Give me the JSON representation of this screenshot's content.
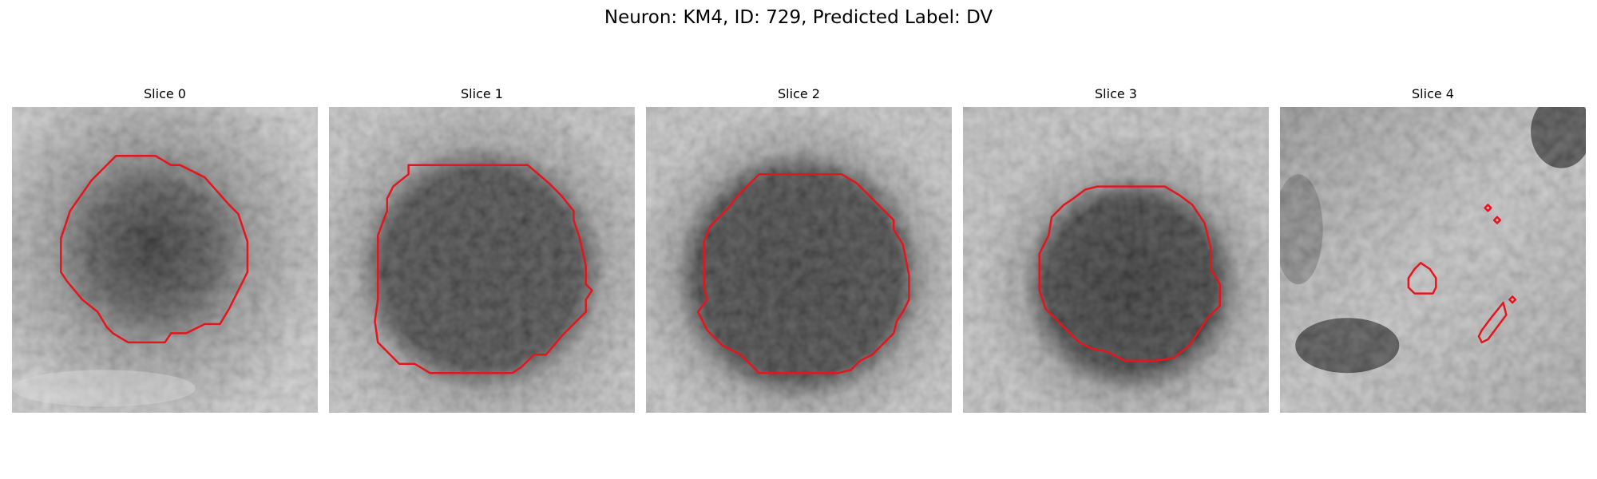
{
  "figure": {
    "title": "Neuron: KM4, ID: 729, Predicted Label: DV"
  },
  "colors": {
    "contour": "#e8141c",
    "background": "#ffffff"
  },
  "panels": [
    {
      "title": "Slice 0"
    },
    {
      "title": "Slice 1"
    },
    {
      "title": "Slice 2"
    },
    {
      "title": "Slice 3"
    },
    {
      "title": "Slice 4"
    }
  ]
}
